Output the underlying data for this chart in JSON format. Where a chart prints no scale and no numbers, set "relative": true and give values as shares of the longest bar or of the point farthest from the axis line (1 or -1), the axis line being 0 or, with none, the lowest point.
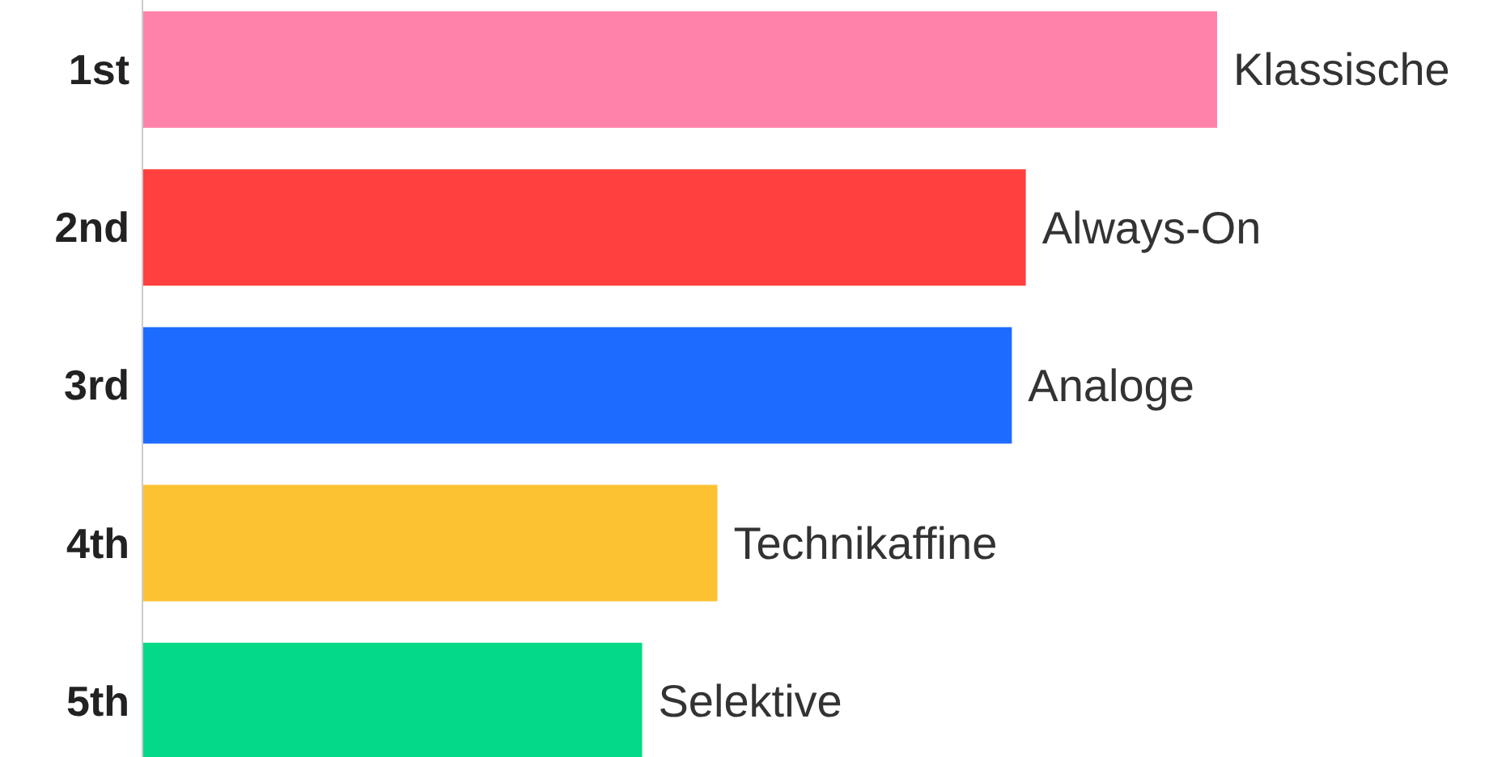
{
  "chart_data": {
    "type": "bar",
    "orientation": "horizontal",
    "relative": true,
    "categories": [
      "1st",
      "2nd",
      "3rd",
      "4th",
      "5th"
    ],
    "values": [
      1,
      0.822,
      0.809,
      0.535,
      0.465
    ],
    "colors": [
      "#ff82aa",
      "#ff403f",
      "#1e6bff",
      "#fdc232",
      "#03d987"
    ],
    "annotations": [
      {
        "text": "Klassische",
        "x": 1,
        "y": "1st"
      },
      {
        "text": "Always-On",
        "x": 0.822,
        "y": "2nd"
      },
      {
        "text": "Analoge",
        "x": 0.809,
        "y": "3rd"
      },
      {
        "text": "Technikaffine",
        "x": 0.535,
        "y": "4th"
      },
      {
        "text": "Selektive",
        "x": 0.465,
        "y": "5th"
      }
    ],
    "grid": false,
    "legend": false
  }
}
